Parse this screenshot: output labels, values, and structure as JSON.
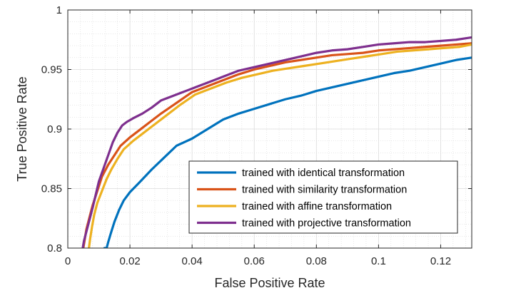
{
  "chart_data": {
    "type": "line",
    "title": "",
    "xlabel": "False Positive Rate",
    "ylabel": "True Positive Rate",
    "xlim": [
      0,
      0.13
    ],
    "ylim": [
      0.8,
      1.0
    ],
    "xticks": [
      0,
      0.02,
      0.04,
      0.06,
      0.08,
      0.1,
      0.12
    ],
    "xtick_labels": [
      "0",
      "0.02",
      "0.04",
      "0.06",
      "0.08",
      "0.1",
      "0.12"
    ],
    "yticks": [
      0.8,
      0.85,
      0.9,
      0.95,
      1.0
    ],
    "ytick_labels": [
      "0.8",
      "0.85",
      "0.9",
      "0.95",
      "1"
    ],
    "grid": true,
    "minor_grid": true,
    "legend_position": "lower-right",
    "series": [
      {
        "name": "trained with identical transformation",
        "color": "#0072BD",
        "x": [
          0.0118,
          0.0125,
          0.013,
          0.0138,
          0.015,
          0.0165,
          0.018,
          0.02,
          0.023,
          0.027,
          0.031,
          0.035,
          0.04,
          0.045,
          0.05,
          0.055,
          0.06,
          0.065,
          0.07,
          0.075,
          0.08,
          0.085,
          0.09,
          0.095,
          0.1,
          0.105,
          0.11,
          0.115,
          0.12,
          0.125,
          0.13
        ],
        "y": [
          0.8,
          0.8,
          0.805,
          0.812,
          0.822,
          0.832,
          0.84,
          0.847,
          0.855,
          0.866,
          0.876,
          0.886,
          0.892,
          0.9,
          0.908,
          0.913,
          0.917,
          0.921,
          0.925,
          0.928,
          0.932,
          0.935,
          0.938,
          0.941,
          0.944,
          0.947,
          0.949,
          0.952,
          0.955,
          0.958,
          0.96
        ]
      },
      {
        "name": "trained with similarity transformation",
        "color": "#D95319",
        "x": [
          0.005,
          0.0055,
          0.006,
          0.007,
          0.008,
          0.0095,
          0.011,
          0.013,
          0.015,
          0.017,
          0.02,
          0.023,
          0.026,
          0.03,
          0.035,
          0.04,
          0.045,
          0.05,
          0.055,
          0.06,
          0.065,
          0.07,
          0.075,
          0.08,
          0.085,
          0.09,
          0.095,
          0.1,
          0.105,
          0.11,
          0.115,
          0.12,
          0.125,
          0.13
        ],
        "y": [
          0.8,
          0.808,
          0.816,
          0.826,
          0.836,
          0.848,
          0.86,
          0.87,
          0.878,
          0.886,
          0.893,
          0.899,
          0.905,
          0.913,
          0.922,
          0.931,
          0.936,
          0.941,
          0.946,
          0.95,
          0.953,
          0.956,
          0.958,
          0.96,
          0.962,
          0.963,
          0.964,
          0.966,
          0.967,
          0.968,
          0.969,
          0.97,
          0.971,
          0.972
        ]
      },
      {
        "name": "trained with affine transformation",
        "color": "#EDB120",
        "x": [
          0.0068,
          0.0072,
          0.0078,
          0.0085,
          0.0095,
          0.011,
          0.0125,
          0.014,
          0.016,
          0.018,
          0.021,
          0.024,
          0.027,
          0.031,
          0.036,
          0.041,
          0.046,
          0.051,
          0.056,
          0.061,
          0.066,
          0.071,
          0.076,
          0.081,
          0.086,
          0.091,
          0.096,
          0.101,
          0.106,
          0.111,
          0.116,
          0.121,
          0.126,
          0.13
        ],
        "y": [
          0.8,
          0.808,
          0.818,
          0.828,
          0.838,
          0.848,
          0.858,
          0.866,
          0.875,
          0.883,
          0.89,
          0.896,
          0.902,
          0.91,
          0.92,
          0.929,
          0.934,
          0.939,
          0.943,
          0.946,
          0.949,
          0.951,
          0.953,
          0.955,
          0.957,
          0.959,
          0.961,
          0.963,
          0.965,
          0.966,
          0.967,
          0.968,
          0.969,
          0.971
        ]
      },
      {
        "name": "trained with projective transformation",
        "color": "#7E2F8E",
        "x": [
          0.0048,
          0.0052,
          0.006,
          0.007,
          0.008,
          0.009,
          0.01,
          0.0115,
          0.013,
          0.0145,
          0.016,
          0.0175,
          0.019,
          0.021,
          0.024,
          0.027,
          0.03,
          0.034,
          0.038,
          0.042,
          0.046,
          0.05,
          0.055,
          0.06,
          0.065,
          0.07,
          0.075,
          0.08,
          0.085,
          0.09,
          0.095,
          0.1,
          0.105,
          0.11,
          0.115,
          0.12,
          0.125,
          0.13
        ],
        "y": [
          0.8,
          0.806,
          0.814,
          0.824,
          0.834,
          0.845,
          0.856,
          0.867,
          0.878,
          0.889,
          0.897,
          0.903,
          0.906,
          0.909,
          0.913,
          0.918,
          0.924,
          0.928,
          0.932,
          0.936,
          0.94,
          0.944,
          0.949,
          0.952,
          0.955,
          0.958,
          0.961,
          0.964,
          0.966,
          0.967,
          0.969,
          0.971,
          0.972,
          0.973,
          0.973,
          0.974,
          0.975,
          0.977
        ]
      }
    ]
  }
}
